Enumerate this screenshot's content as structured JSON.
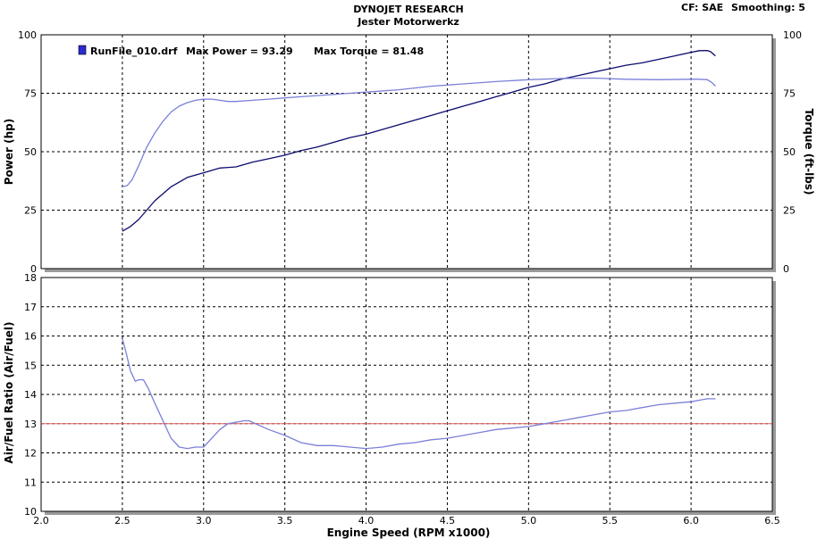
{
  "header": {
    "title": "DYNOJET RESEARCH",
    "subtitle": "Jester Motorwerkz",
    "cf": "CF: SAE",
    "smoothing": "Smoothing: 5"
  },
  "legend": {
    "run_label": "RunFile_010.drf",
    "max_power": "Max Power = 93.29",
    "max_torque": "Max Torque = 81.48",
    "swatch_color": "#2b2bd0"
  },
  "chart_data": [
    {
      "type": "line",
      "ylabel": "Power (hp)",
      "y2label": "Torque (ft-lbs)",
      "xlim": [
        2.0,
        6.5
      ],
      "ylim": [
        0,
        100
      ],
      "y2lim": [
        0,
        100
      ],
      "yticks": [
        "0",
        "25",
        "50",
        "75",
        "100"
      ],
      "y2ticks": [
        "0",
        "25",
        "50",
        "75",
        "100"
      ],
      "grid": true,
      "series": [
        {
          "key": "power",
          "color": "#0a0a6e",
          "x": [
            2.5,
            2.55,
            2.6,
            2.7,
            2.8,
            2.9,
            3.0,
            3.1,
            3.2,
            3.3,
            3.4,
            3.5,
            3.6,
            3.7,
            3.8,
            3.9,
            4.0,
            4.1,
            4.2,
            4.3,
            4.4,
            4.5,
            4.6,
            4.7,
            4.8,
            4.9,
            5.0,
            5.1,
            5.2,
            5.3,
            5.4,
            5.5,
            5.6,
            5.7,
            5.8,
            5.9,
            6.0,
            6.05,
            6.1,
            6.12,
            6.15
          ],
          "y": [
            16,
            18,
            21,
            29,
            35,
            39,
            41,
            43,
            43.5,
            45.5,
            47,
            48.5,
            50.5,
            52,
            54,
            56,
            57.5,
            59.5,
            61.5,
            63.5,
            65.5,
            67.5,
            69.5,
            71.5,
            73.5,
            75.5,
            77.5,
            79,
            81,
            82.5,
            84,
            85.5,
            87,
            88,
            89.5,
            91,
            92.5,
            93.2,
            93.29,
            92.8,
            91
          ]
        },
        {
          "key": "torque",
          "color": "#7a80d8",
          "x": [
            2.5,
            2.53,
            2.56,
            2.6,
            2.65,
            2.7,
            2.75,
            2.8,
            2.85,
            2.9,
            2.95,
            3.0,
            3.05,
            3.1,
            3.15,
            3.2,
            3.3,
            3.4,
            3.5,
            3.6,
            3.7,
            3.8,
            3.9,
            4.0,
            4.2,
            4.4,
            4.6,
            4.8,
            5.0,
            5.2,
            5.4,
            5.6,
            5.8,
            6.0,
            6.05,
            6.1,
            6.13,
            6.15
          ],
          "y": [
            35,
            35.5,
            38,
            44,
            52,
            58,
            63,
            67,
            69.5,
            71,
            72,
            72.5,
            72.5,
            72,
            71.5,
            71.5,
            72,
            72.5,
            73,
            73.5,
            74,
            74.5,
            75,
            75.5,
            76.5,
            78,
            79,
            80,
            80.8,
            81.3,
            81.48,
            81,
            80.8,
            81,
            81,
            80.8,
            79.5,
            78
          ]
        }
      ]
    },
    {
      "type": "line",
      "ylabel": "Air/Fuel Ratio (Air/Fuel)",
      "xlabel": "Engine Speed (RPM x1000)",
      "xlim": [
        2.0,
        6.5
      ],
      "ylim": [
        10,
        18
      ],
      "xticks": [
        "2.0",
        "2.5",
        "3.0",
        "3.5",
        "4.0",
        "4.5",
        "5.0",
        "5.5",
        "6.0",
        "6.5"
      ],
      "yticks": [
        "10",
        "11",
        "12",
        "13",
        "14",
        "15",
        "16",
        "17",
        "18"
      ],
      "grid": true,
      "reference_line": {
        "y": 13.0,
        "color": "#e06060"
      },
      "series": [
        {
          "key": "afr",
          "color": "#7a80d8",
          "x": [
            2.5,
            2.52,
            2.55,
            2.58,
            2.6,
            2.63,
            2.66,
            2.7,
            2.75,
            2.8,
            2.85,
            2.9,
            2.95,
            3.0,
            3.05,
            3.1,
            3.15,
            3.2,
            3.25,
            3.28,
            3.32,
            3.4,
            3.5,
            3.6,
            3.7,
            3.8,
            3.9,
            4.0,
            4.1,
            4.2,
            4.3,
            4.4,
            4.5,
            4.6,
            4.7,
            4.8,
            4.9,
            5.0,
            5.1,
            5.2,
            5.3,
            5.4,
            5.5,
            5.6,
            5.7,
            5.8,
            5.9,
            6.0,
            6.05,
            6.1,
            6.15
          ],
          "y": [
            15.9,
            15.5,
            14.8,
            14.45,
            14.5,
            14.5,
            14.2,
            13.7,
            13.1,
            12.5,
            12.2,
            12.15,
            12.2,
            12.2,
            12.5,
            12.8,
            13.0,
            13.05,
            13.1,
            13.1,
            13.0,
            12.8,
            12.6,
            12.35,
            12.25,
            12.25,
            12.2,
            12.15,
            12.2,
            12.3,
            12.35,
            12.45,
            12.5,
            12.6,
            12.7,
            12.8,
            12.85,
            12.9,
            13.0,
            13.1,
            13.2,
            13.3,
            13.4,
            13.45,
            13.55,
            13.65,
            13.7,
            13.75,
            13.8,
            13.85,
            13.85
          ]
        }
      ]
    }
  ]
}
